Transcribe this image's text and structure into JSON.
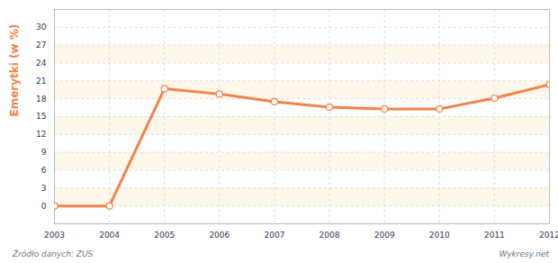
{
  "chart_data": {
    "type": "line",
    "y_label": "Emerytki (w %)",
    "x": [
      2003,
      2004,
      2005,
      2006,
      2007,
      2008,
      2009,
      2010,
      2011,
      2012
    ],
    "values": [
      0,
      0,
      19.7,
      18.8,
      17.5,
      16.6,
      16.3,
      16.3,
      18.1,
      20.4
    ],
    "color": "#f4834a",
    "marker": "circle",
    "xlim": [
      2003,
      2012
    ],
    "xticks": [
      2003,
      2004,
      2005,
      2006,
      2007,
      2008,
      2009,
      2010,
      2011,
      2012
    ],
    "ylim": [
      -3,
      33
    ],
    "yticks": [
      0,
      3,
      6,
      9,
      12,
      15,
      18,
      21,
      24,
      27,
      30
    ],
    "grid": true,
    "annotations": [
      "Źródło danych: ZUS",
      "Wykresy.net"
    ]
  }
}
